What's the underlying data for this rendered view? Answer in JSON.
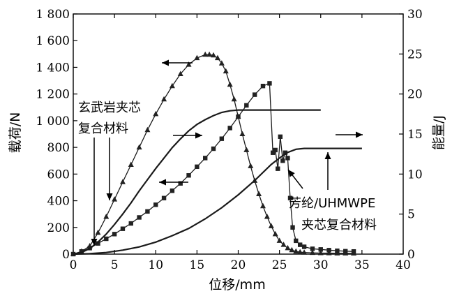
{
  "chart_data": {
    "type": "line",
    "xlabel": "位移/mm",
    "ylabel_left": "载荷/N",
    "ylabel_right": "能量/J",
    "x_ticks": [
      "0",
      "5",
      "10",
      "15",
      "20",
      "25",
      "30",
      "35",
      "40"
    ],
    "y_left_ticks": [
      "0",
      "200",
      "400",
      "600",
      "800",
      "1 000",
      "1 200",
      "1 400",
      "1 600",
      "1 800"
    ],
    "y_right_ticks": [
      "0",
      "5",
      "10",
      "15",
      "20",
      "25",
      "30"
    ],
    "xlim": [
      0,
      40
    ],
    "ylim_left": [
      0,
      1800
    ],
    "ylim_right": [
      0,
      30
    ],
    "annotations": {
      "basalt_line1": "玄武岩夹芯",
      "basalt_line2": "复合材料",
      "aramid_line1": "芳纶/UHMWPE",
      "aramid_line2": "夹芯复合材料"
    },
    "series": [
      {
        "key": "basalt_load",
        "axis": "left",
        "marker": "triangle",
        "x": [
          0,
          1,
          2,
          3,
          4,
          5,
          6,
          7,
          8,
          9,
          10,
          11,
          12,
          13,
          14,
          15,
          16,
          16.5,
          17,
          17.5,
          18,
          18.5,
          19,
          19.5,
          20,
          20.5,
          21,
          21.5,
          22,
          22.5,
          23,
          23.5,
          24,
          24.5,
          25,
          25.5,
          26,
          26.5,
          27,
          27.5,
          28,
          29,
          30,
          31,
          32,
          33,
          34
        ],
        "y": [
          0,
          20,
          60,
          160,
          280,
          410,
          540,
          670,
          800,
          930,
          1050,
          1160,
          1260,
          1350,
          1420,
          1470,
          1495,
          1495,
          1490,
          1470,
          1430,
          1370,
          1270,
          1160,
          1030,
          900,
          780,
          660,
          550,
          450,
          360,
          280,
          210,
          150,
          100,
          70,
          45,
          30,
          20,
          15,
          12,
          10,
          8,
          7,
          6,
          6,
          5
        ]
      },
      {
        "key": "aramid_load",
        "axis": "left",
        "marker": "square",
        "x": [
          0,
          1,
          2,
          3,
          4,
          5,
          6,
          7,
          8,
          9,
          10,
          11,
          12,
          13,
          14,
          15,
          16,
          17,
          18,
          19,
          20,
          21,
          22,
          23,
          23.8,
          24.2,
          24.5,
          24.8,
          25.1,
          25.4,
          25.7,
          26,
          26.3,
          26.6,
          27,
          27.5,
          28,
          29,
          30,
          31,
          32,
          33,
          34
        ],
        "y": [
          0,
          20,
          45,
          80,
          115,
          150,
          190,
          230,
          275,
          320,
          370,
          420,
          475,
          530,
          590,
          655,
          720,
          790,
          865,
          945,
          1030,
          1115,
          1195,
          1260,
          1280,
          760,
          780,
          640,
          880,
          700,
          760,
          720,
          420,
          200,
          100,
          70,
          55,
          40,
          35,
          30,
          25,
          22,
          20
        ]
      },
      {
        "key": "basalt_energy",
        "axis": "right",
        "marker": "none",
        "x": [
          0,
          1,
          2,
          3,
          4,
          5,
          6,
          7,
          8,
          9,
          10,
          11,
          12,
          13,
          14,
          15,
          16,
          17,
          18,
          19,
          20,
          22,
          24,
          26,
          28,
          30
        ],
        "y": [
          0,
          0.2,
          0.7,
          1.5,
          2.5,
          3.7,
          5.0,
          6.4,
          7.9,
          9.3,
          10.7,
          12.0,
          13.3,
          14.4,
          15.4,
          16.2,
          16.8,
          17.3,
          17.7,
          17.9,
          18.0,
          18.0,
          18.0,
          18.0,
          18.0,
          18.0
        ]
      },
      {
        "key": "aramid_energy",
        "axis": "right",
        "marker": "none",
        "x": [
          0,
          2,
          4,
          6,
          8,
          10,
          12,
          14,
          16,
          18,
          20,
          22,
          23,
          24,
          25,
          26,
          27,
          28,
          30,
          32,
          35
        ],
        "y": [
          0,
          0.05,
          0.2,
          0.5,
          0.9,
          1.5,
          2.3,
          3.2,
          4.4,
          5.8,
          7.4,
          9.2,
          10.2,
          11.2,
          12.0,
          12.7,
          13.1,
          13.2,
          13.2,
          13.2,
          13.2
        ]
      }
    ]
  }
}
